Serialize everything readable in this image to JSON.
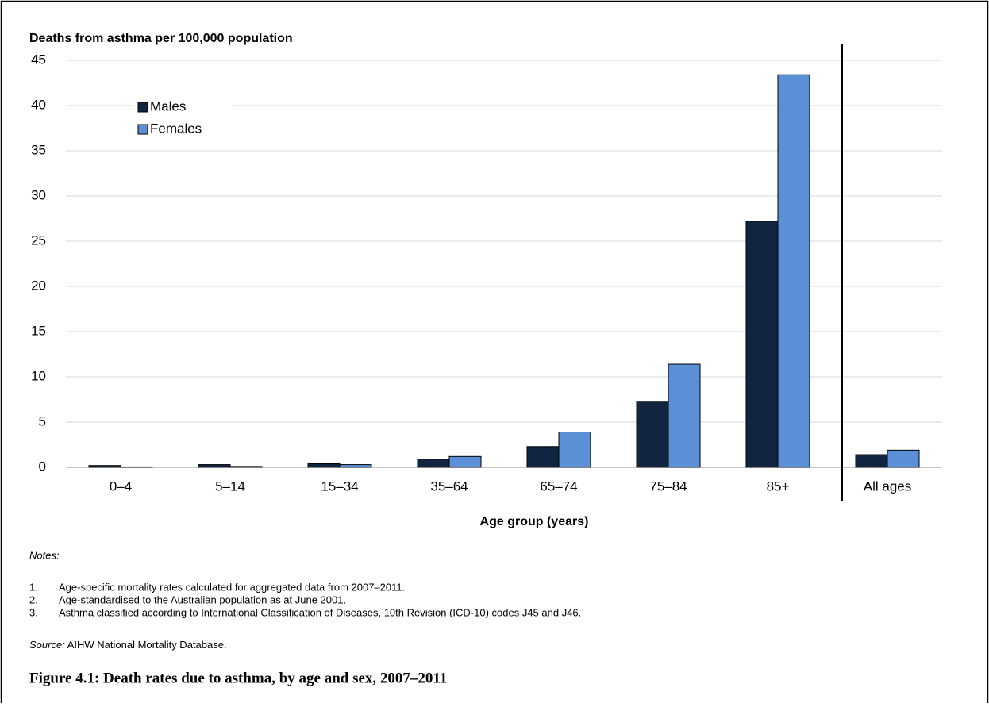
{
  "chart_data": {
    "type": "bar",
    "y_axis_title": "Deaths from asthma per 100,000 population",
    "x_axis_title": "Age group (years)",
    "categories": [
      "0–4",
      "5–14",
      "15–34",
      "35–64",
      "65–74",
      "75–84",
      "85+",
      "All ages"
    ],
    "series": [
      {
        "name": "Males",
        "color": "#112540",
        "values": [
          0.2,
          0.3,
          0.4,
          0.9,
          2.3,
          7.3,
          27.2,
          1.4
        ]
      },
      {
        "name": "Females",
        "color": "#5b90d6",
        "values": [
          0.05,
          0.1,
          0.3,
          1.2,
          3.9,
          11.4,
          43.4,
          1.9
        ]
      }
    ],
    "ylim": [
      0,
      45
    ],
    "yticks": [
      0,
      5,
      10,
      15,
      20,
      25,
      30,
      35,
      40,
      45
    ],
    "grid": true
  },
  "notes": {
    "label": "Notes:",
    "items": [
      {
        "number": "1.",
        "text": "Age-specific mortality rates calculated for aggregated data from 2007–2011."
      },
      {
        "number": "2.",
        "text": "Age-standardised to the Australian population as at June 2001."
      },
      {
        "number": "3.",
        "text": "Asthma classified according to International Classification of Diseases, 10th Revision (ICD-10) codes J45 and J46."
      }
    ]
  },
  "source": {
    "label": "Source:",
    "text": "AIHW National Mortality Database."
  },
  "caption": "Figure 4.1: Death rates due to asthma, by age and sex, 2007–2011"
}
